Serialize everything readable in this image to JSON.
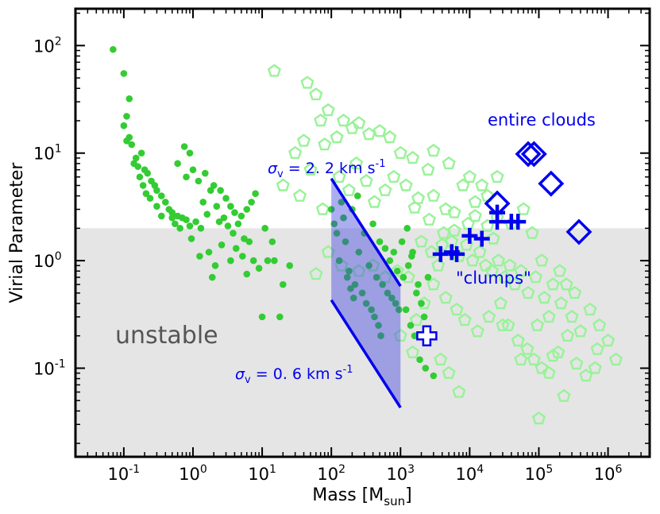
{
  "chart_data": {
    "type": "scatter",
    "xscale": "log",
    "yscale": "log",
    "xlim": [
      0.02,
      4000000
    ],
    "ylim": [
      0.015,
      220
    ],
    "xlabel": {
      "main": "Mass  [M",
      "sub": "sun",
      "close": "]"
    },
    "ylabel": "Virial Parameter",
    "xticks": [
      {
        "value": 0.1,
        "base": "10",
        "exp": "-1"
      },
      {
        "value": 1,
        "base": "10",
        "exp": "0"
      },
      {
        "value": 10,
        "base": "10",
        "exp": "1"
      },
      {
        "value": 100,
        "base": "10",
        "exp": "2"
      },
      {
        "value": 1000,
        "base": "10",
        "exp": "3"
      },
      {
        "value": 10000,
        "base": "10",
        "exp": "4"
      },
      {
        "value": 100000,
        "base": "10",
        "exp": "5"
      },
      {
        "value": 1000000,
        "base": "10",
        "exp": "6"
      }
    ],
    "yticks": [
      {
        "value": 0.1,
        "base": "10",
        "exp": "-1"
      },
      {
        "value": 1,
        "base": "10",
        "exp": "0"
      },
      {
        "value": 10,
        "base": "10",
        "exp": "1"
      },
      {
        "value": 100,
        "base": "10",
        "exp": "2"
      }
    ],
    "unstable_threshold": 2,
    "unstable_label": "unstable",
    "velocity_band": {
      "mass_range": [
        100,
        1000
      ],
      "upper": {
        "points": [
          [
            100,
            5.8
          ],
          [
            1000,
            0.58
          ]
        ],
        "label": {
          "sym": "σ",
          "sub": "v",
          "text": " = 2. 2 km s",
          "sup": "-1"
        }
      },
      "lower": {
        "points": [
          [
            100,
            0.43
          ],
          [
            1000,
            0.043
          ]
        ],
        "label": {
          "sym": "σ",
          "sub": "v",
          "text": " = 0. 6 km s",
          "sup": "-1"
        }
      }
    },
    "series": [
      {
        "name": "dense cores (filled green circles)",
        "marker": "circle",
        "color": "#33cc33",
        "points": [
          [
            0.07,
            92
          ],
          [
            0.1,
            55
          ],
          [
            0.12,
            32
          ],
          [
            0.11,
            22
          ],
          [
            0.1,
            18
          ],
          [
            0.12,
            14
          ],
          [
            0.13,
            12
          ],
          [
            0.11,
            13
          ],
          [
            0.15,
            9
          ],
          [
            0.18,
            10
          ],
          [
            0.14,
            8
          ],
          [
            0.16,
            7.5
          ],
          [
            0.2,
            7
          ],
          [
            0.22,
            6.5
          ],
          [
            0.17,
            6
          ],
          [
            0.25,
            5.5
          ],
          [
            0.19,
            5
          ],
          [
            0.28,
            5
          ],
          [
            0.3,
            4.5
          ],
          [
            0.21,
            4.2
          ],
          [
            0.35,
            4
          ],
          [
            0.24,
            3.8
          ],
          [
            0.4,
            3.5
          ],
          [
            0.3,
            3.2
          ],
          [
            0.45,
            3
          ],
          [
            0.5,
            2.8
          ],
          [
            0.6,
            2.6
          ],
          [
            0.7,
            2.5
          ],
          [
            0.8,
            2.4
          ],
          [
            0.35,
            2.6
          ],
          [
            0.55,
            2.2
          ],
          [
            0.9,
            2.1
          ],
          [
            1.1,
            2.3
          ],
          [
            1.3,
            2.0
          ],
          [
            0.65,
            2.0
          ],
          [
            0.75,
            11.5
          ],
          [
            0.9,
            10
          ],
          [
            0.6,
            8
          ],
          [
            1.0,
            7
          ],
          [
            0.8,
            6
          ],
          [
            1.2,
            5.5
          ],
          [
            1.5,
            6.5
          ],
          [
            2,
            5
          ],
          [
            1.8,
            4.5
          ],
          [
            2.5,
            4.5
          ],
          [
            3,
            3.8
          ],
          [
            1.4,
            3.5
          ],
          [
            2.2,
            3.2
          ],
          [
            3.5,
            3.2
          ],
          [
            4,
            2.8
          ],
          [
            5,
            2.6
          ],
          [
            6,
            3.0
          ],
          [
            2.8,
            2.5
          ],
          [
            0.5,
            2.5
          ],
          [
            1.6,
            2.7
          ],
          [
            2.4,
            2.3
          ],
          [
            3.2,
            2.1
          ],
          [
            4.5,
            2.2
          ],
          [
            7,
            3.5
          ],
          [
            8,
            4.2
          ],
          [
            3.8,
            1.8
          ],
          [
            5.5,
            1.6
          ],
          [
            6.5,
            1.5
          ],
          [
            2.6,
            1.4
          ],
          [
            4.2,
            1.3
          ],
          [
            1.7,
            1.2
          ],
          [
            0.95,
            1.6
          ],
          [
            1.25,
            1.1
          ],
          [
            2.1,
            0.9
          ],
          [
            5.2,
            1.1
          ],
          [
            7.5,
            1.0
          ],
          [
            9,
            0.85
          ],
          [
            3.5,
            1.0
          ],
          [
            1.9,
            0.7
          ],
          [
            6,
            0.75
          ],
          [
            12,
            1.0
          ],
          [
            15,
            1.0
          ],
          [
            20,
            0.6
          ],
          [
            25,
            0.9
          ],
          [
            10,
            0.3
          ],
          [
            18,
            0.3
          ],
          [
            11,
            2.0
          ],
          [
            14,
            1.5
          ],
          [
            150,
            2.5
          ],
          [
            200,
            3.0
          ],
          [
            300,
            1.8
          ],
          [
            400,
            2.2
          ],
          [
            500,
            1.5
          ],
          [
            600,
            1.3
          ],
          [
            700,
            1.0
          ],
          [
            800,
            1.2
          ],
          [
            900,
            0.8
          ],
          [
            250,
            1.2
          ],
          [
            350,
            0.9
          ],
          [
            450,
            0.7
          ],
          [
            550,
            0.6
          ],
          [
            650,
            0.5
          ],
          [
            750,
            0.45
          ],
          [
            850,
            0.4
          ],
          [
            950,
            0.35
          ],
          [
            180,
            0.8
          ],
          [
            220,
            0.6
          ],
          [
            280,
            0.5
          ],
          [
            320,
            0.4
          ],
          [
            380,
            0.35
          ],
          [
            420,
            0.3
          ],
          [
            480,
            0.25
          ],
          [
            520,
            0.2
          ],
          [
            160,
            1.5
          ],
          [
            240,
            4.0
          ],
          [
            140,
            3.5
          ],
          [
            100,
            3.0
          ],
          [
            110,
            2.2
          ],
          [
            120,
            1.8
          ],
          [
            130,
            1.0
          ],
          [
            170,
            0.7
          ],
          [
            190,
            0.55
          ],
          [
            210,
            0.45
          ],
          [
            1100,
            0.7
          ],
          [
            1300,
            0.9
          ],
          [
            1500,
            1.2
          ],
          [
            1800,
            0.6
          ],
          [
            2000,
            0.4
          ],
          [
            2200,
            0.3
          ],
          [
            1200,
            0.35
          ],
          [
            1400,
            0.25
          ],
          [
            1600,
            0.2
          ],
          [
            1900,
            0.12
          ],
          [
            2300,
            0.1
          ],
          [
            3000,
            0.085
          ],
          [
            1700,
            0.5
          ],
          [
            2500,
            0.7
          ],
          [
            1050,
            1.5
          ],
          [
            1250,
            2.0
          ],
          [
            1450,
            1.1
          ]
        ]
      },
      {
        "name": "cores (open light-green pentagons)",
        "marker": "pentagon",
        "color": "#99f299",
        "points": [
          [
            15,
            58
          ],
          [
            45,
            45
          ],
          [
            60,
            35
          ],
          [
            70,
            20
          ],
          [
            90,
            25
          ],
          [
            40,
            13
          ],
          [
            30,
            10
          ],
          [
            80,
            12
          ],
          [
            120,
            14
          ],
          [
            150,
            20
          ],
          [
            200,
            17
          ],
          [
            250,
            19
          ],
          [
            350,
            15
          ],
          [
            500,
            16
          ],
          [
            700,
            14
          ],
          [
            1000,
            10
          ],
          [
            1500,
            9
          ],
          [
            2500,
            7
          ],
          [
            5000,
            8
          ],
          [
            10000,
            6
          ],
          [
            20,
            5
          ],
          [
            35,
            4
          ],
          [
            50,
            7
          ],
          [
            75,
            3
          ],
          [
            130,
            6
          ],
          [
            180,
            4.5
          ],
          [
            230,
            8
          ],
          [
            320,
            5.5
          ],
          [
            420,
            3.5
          ],
          [
            600,
            4.5
          ],
          [
            800,
            6
          ],
          [
            1200,
            5
          ],
          [
            1800,
            3.8
          ],
          [
            3000,
            4
          ],
          [
            4500,
            3
          ],
          [
            6000,
            2.8
          ],
          [
            8000,
            5
          ],
          [
            12000,
            3.5
          ],
          [
            18000,
            4
          ],
          [
            25000,
            2.5
          ],
          [
            40000,
            2.2
          ],
          [
            60000,
            3.0
          ],
          [
            80000,
            1.8
          ],
          [
            60,
            0.75
          ],
          [
            90,
            1.2
          ],
          [
            140,
            0.9
          ],
          [
            250,
            0.8
          ],
          [
            400,
            0.9
          ],
          [
            600,
            0.7
          ],
          [
            900,
            0.8
          ],
          [
            1300,
            0.7
          ],
          [
            2000,
            1.5
          ],
          [
            2800,
            1.2
          ],
          [
            3500,
            0.9
          ],
          [
            4200,
            1.8
          ],
          [
            5500,
            1.5
          ],
          [
            7000,
            1.1
          ],
          [
            9000,
            1.4
          ],
          [
            11000,
            1.0
          ],
          [
            14000,
            1.2
          ],
          [
            17000,
            0.9
          ],
          [
            21000,
            0.8
          ],
          [
            26000,
            1.0
          ],
          [
            32000,
            0.7
          ],
          [
            38000,
            0.9
          ],
          [
            45000,
            0.6
          ],
          [
            55000,
            0.8
          ],
          [
            70000,
            0.5
          ],
          [
            90000,
            0.7
          ],
          [
            120000,
            0.45
          ],
          [
            160000,
            0.6
          ],
          [
            210000,
            0.4
          ],
          [
            300000,
            0.3
          ],
          [
            400000,
            0.22
          ],
          [
            550000,
            0.35
          ],
          [
            750000,
            0.25
          ],
          [
            1000000,
            0.18
          ],
          [
            1300000,
            0.12
          ],
          [
            3000,
            0.6
          ],
          [
            4500,
            0.45
          ],
          [
            6500,
            0.35
          ],
          [
            8500,
            0.28
          ],
          [
            13000,
            0.22
          ],
          [
            19000,
            0.3
          ],
          [
            28000,
            0.4
          ],
          [
            36000,
            0.25
          ],
          [
            50000,
            0.18
          ],
          [
            68000,
            0.15
          ],
          [
            85000,
            0.12
          ],
          [
            110000,
            0.1
          ],
          [
            140000,
            0.09
          ],
          [
            190000,
            0.14
          ],
          [
            260000,
            0.2
          ],
          [
            350000,
            0.11
          ],
          [
            480000,
            0.085
          ],
          [
            650000,
            0.1
          ],
          [
            160000,
            0.13
          ],
          [
            230000,
            0.055
          ],
          [
            30000,
            0.25
          ],
          [
            55000,
            0.12
          ],
          [
            3800,
            0.12
          ],
          [
            5000,
            0.09
          ],
          [
            7000,
            0.06
          ],
          [
            1000,
            0.2
          ],
          [
            1700,
            0.28
          ],
          [
            2200,
            0.4
          ],
          [
            1500,
            0.14
          ],
          [
            100000,
            0.034
          ],
          [
            110000,
            1.0
          ],
          [
            18000,
            2.1
          ],
          [
            22000,
            1.6
          ],
          [
            9500,
            2.2
          ],
          [
            6000,
            1.9
          ],
          [
            4000,
            1.4
          ],
          [
            2600,
            2.4
          ],
          [
            1600,
            3.1
          ],
          [
            12000,
            2.6
          ],
          [
            15000,
            5
          ],
          [
            25000,
            6
          ],
          [
            3000,
            10.5
          ],
          [
            200000,
            0.8
          ],
          [
            250000,
            0.6
          ],
          [
            330000,
            0.5
          ],
          [
            700000,
            0.15
          ],
          [
            140000,
            0.3
          ],
          [
            95000,
            0.25
          ]
        ]
      },
      {
        "name": "\"clumps\" (blue plus markers)",
        "marker": "plus",
        "color": "#0000ee",
        "points": [
          [
            3800,
            1.15
          ],
          [
            5500,
            1.2
          ],
          [
            6500,
            1.15
          ],
          [
            10000,
            1.7
          ],
          [
            15000,
            1.6
          ],
          [
            25000,
            2.8
          ],
          [
            25000,
            2.3
          ],
          [
            40000,
            2.3
          ],
          [
            50000,
            2.3
          ]
        ]
      },
      {
        "name": "open plus marker",
        "marker": "plus-open",
        "color": "#0000ee",
        "points": [
          [
            2400,
            0.2
          ]
        ]
      },
      {
        "name": "entire clouds (open blue diamonds)",
        "marker": "diamond",
        "color": "#0000ee",
        "points": [
          [
            25000,
            3.4
          ],
          [
            70000,
            9.8
          ],
          [
            85000,
            9.8
          ],
          [
            150000,
            5.2
          ],
          [
            380000,
            1.85
          ]
        ]
      }
    ],
    "annotations": [
      {
        "text": "entire clouds",
        "color": "#0000ee"
      },
      {
        "text": "\"clumps\"",
        "color": "#0000ee"
      }
    ]
  }
}
